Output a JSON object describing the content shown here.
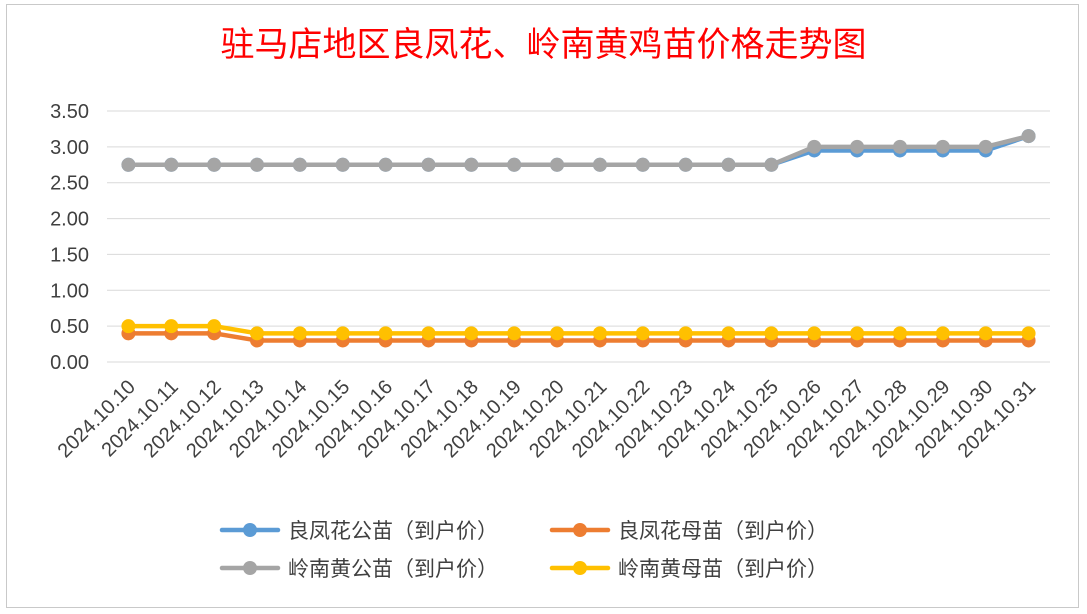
{
  "title": "驻马店地区良凤花、岭南黄鸡苗价格走势图",
  "chart_data": {
    "type": "line",
    "title": "驻马店地区良凤花、岭南黄鸡苗价格走势图",
    "xlabel": "",
    "ylabel": "",
    "ylim": [
      0,
      3.5
    ],
    "yticks": [
      "0.00",
      "0.50",
      "1.00",
      "1.50",
      "2.00",
      "2.50",
      "3.00",
      "3.50"
    ],
    "grid": true,
    "legend": "bottom",
    "categories": [
      "2024.10.10",
      "2024.10.11",
      "2024.10.12",
      "2024.10.13",
      "2024.10.14",
      "2024.10.15",
      "2024.10.16",
      "2024.10.17",
      "2024.10.18",
      "2024.10.19",
      "2024.10.20",
      "2024.10.21",
      "2024.10.22",
      "2024.10.23",
      "2024.10.24",
      "2024.10.25",
      "2024.10.26",
      "2024.10.27",
      "2024.10.28",
      "2024.10.29",
      "2024.10.30",
      "2024.10.31"
    ],
    "series": [
      {
        "name": "良凤花公苗（到户价）",
        "color": "#5b9bd5",
        "values": [
          2.75,
          2.75,
          2.75,
          2.75,
          2.75,
          2.75,
          2.75,
          2.75,
          2.75,
          2.75,
          2.75,
          2.75,
          2.75,
          2.75,
          2.75,
          2.75,
          2.95,
          2.95,
          2.95,
          2.95,
          2.95,
          3.15
        ]
      },
      {
        "name": "良凤花母苗（到户价）",
        "color": "#ed7d31",
        "values": [
          0.4,
          0.4,
          0.4,
          0.3,
          0.3,
          0.3,
          0.3,
          0.3,
          0.3,
          0.3,
          0.3,
          0.3,
          0.3,
          0.3,
          0.3,
          0.3,
          0.3,
          0.3,
          0.3,
          0.3,
          0.3,
          0.3
        ]
      },
      {
        "name": "岭南黄公苗（到户价）",
        "color": "#a5a5a5",
        "values": [
          2.75,
          2.75,
          2.75,
          2.75,
          2.75,
          2.75,
          2.75,
          2.75,
          2.75,
          2.75,
          2.75,
          2.75,
          2.75,
          2.75,
          2.75,
          2.75,
          3.0,
          3.0,
          3.0,
          3.0,
          3.0,
          3.15
        ]
      },
      {
        "name": "岭南黄母苗（到户价）",
        "color": "#ffc000",
        "values": [
          0.5,
          0.5,
          0.5,
          0.4,
          0.4,
          0.4,
          0.4,
          0.4,
          0.4,
          0.4,
          0.4,
          0.4,
          0.4,
          0.4,
          0.4,
          0.4,
          0.4,
          0.4,
          0.4,
          0.4,
          0.4,
          0.4
        ]
      }
    ]
  }
}
